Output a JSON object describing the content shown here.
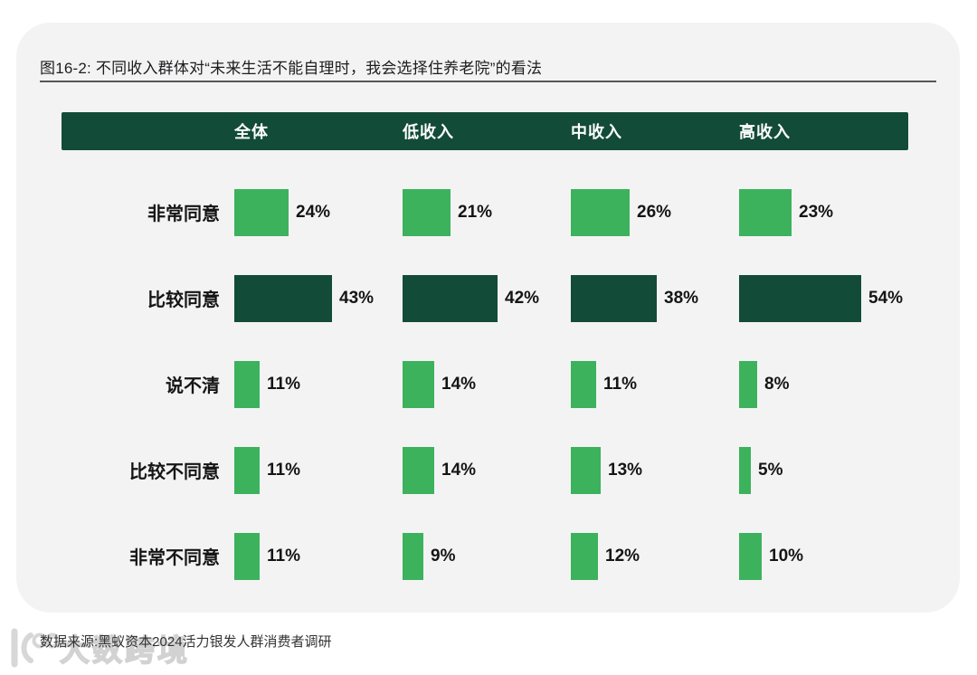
{
  "figure": {
    "title": "图16-2: 不同收入群体对“未来生活不能自理时，我会选择住养老院”的看法",
    "source": "数据来源:黑蚁资本2024活力银发人群消费者调研"
  },
  "watermark": {
    "logo": "10100-logo",
    "text": "大数跨境"
  },
  "colors": {
    "light_green": "#3cb25c",
    "dark_green": "#134b39",
    "header_bg": "#134b39",
    "card_bg": "#f3f3f4",
    "text": "#151515"
  },
  "chart_data": {
    "type": "bar",
    "title": "图16-2: 不同收入群体对“未来生活不能自理时，我会选择住养老院”的看法",
    "categories": [
      "非常同意",
      "比较同意",
      "说不清",
      "比较不同意",
      "非常不同意"
    ],
    "groups": [
      "全体",
      "低收入",
      "中收入",
      "高收入"
    ],
    "series": [
      {
        "name": "全体",
        "values": [
          24,
          43,
          11,
          11,
          11
        ]
      },
      {
        "name": "低收入",
        "values": [
          21,
          42,
          14,
          14,
          9
        ]
      },
      {
        "name": "中收入",
        "values": [
          26,
          38,
          11,
          13,
          12
        ]
      },
      {
        "name": "高收入",
        "values": [
          23,
          54,
          8,
          5,
          10
        ]
      }
    ],
    "unit": "%",
    "highlighted_category": "比较同意",
    "legend_position": "none",
    "grid": false,
    "xlim": [
      0,
      60
    ]
  }
}
